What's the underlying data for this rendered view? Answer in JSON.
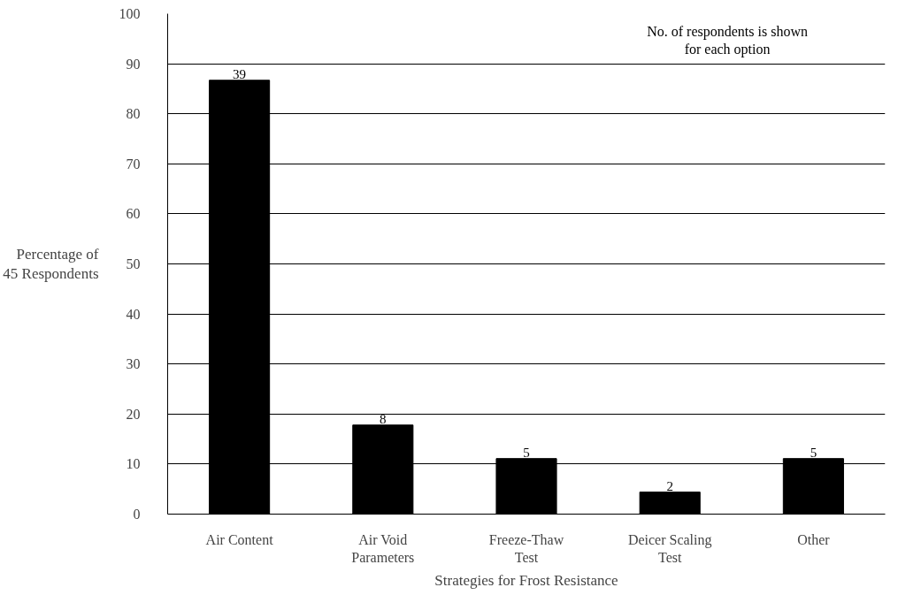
{
  "chart_data": {
    "type": "bar",
    "xlabel": "Strategies for Frost Resistance",
    "ylabel": "Percentage of\n45 Respondents",
    "categories": [
      "Air Content",
      "Air Void\nParameters",
      "Freeze-Thaw\nTest",
      "Deicer Scaling\nTest",
      "Other"
    ],
    "values": [
      86.7,
      17.8,
      11.1,
      4.4,
      11.1
    ],
    "color": "#000000",
    "ylim": [
      0,
      100
    ],
    "yticks": [
      0,
      10,
      20,
      30,
      40,
      50,
      60,
      70,
      80,
      90,
      100
    ],
    "grid": "y",
    "annotations": [
      "No. of respondents is shown\nfor each option",
      {
        "text": "39",
        "x": "Air Content",
        "y": 86.7
      },
      {
        "text": "8",
        "x": "Air Void\nParameters",
        "y": 17.8
      },
      {
        "text": "5",
        "x": "Freeze-Thaw\nTest",
        "y": 11.1
      },
      {
        "text": "2",
        "x": "Deicer Scaling\nTest",
        "y": 4.4
      },
      {
        "text": "5",
        "x": "Other",
        "y": 11.1
      }
    ]
  }
}
